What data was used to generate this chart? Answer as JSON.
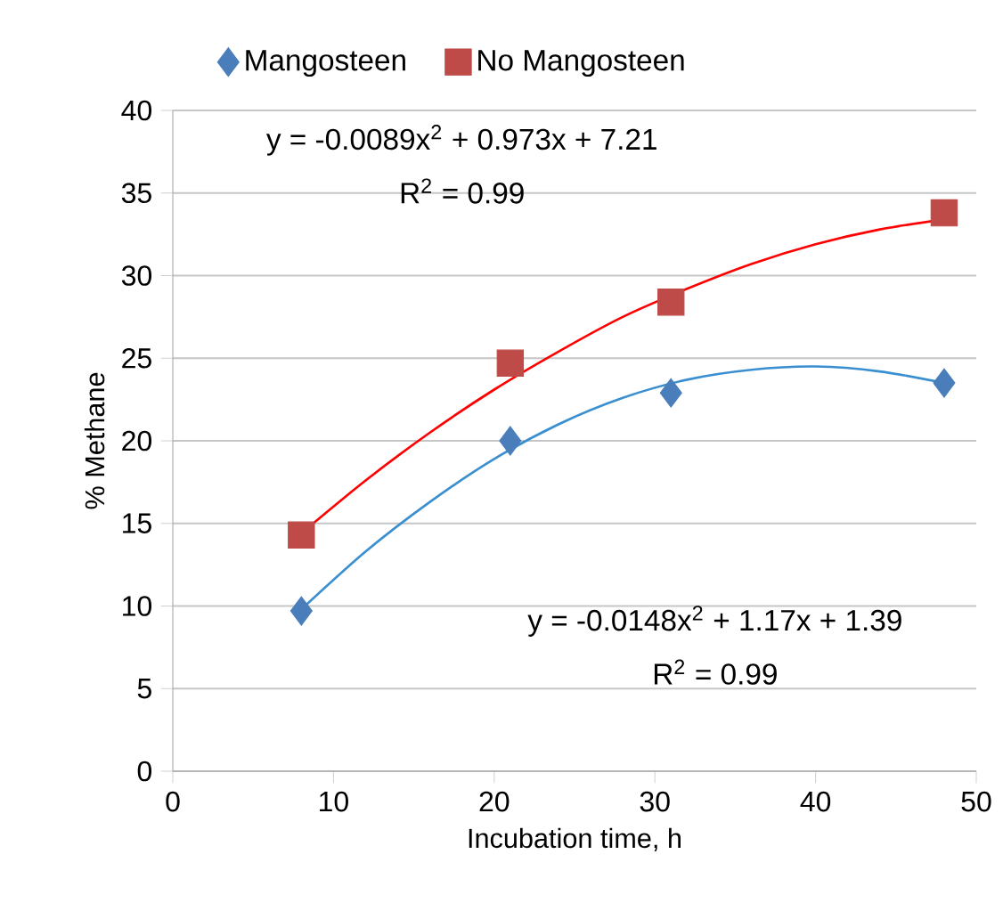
{
  "chart_data": {
    "type": "scatter",
    "xlabel": "Incubation time, h",
    "ylabel": "% Methane",
    "xlim": [
      0,
      50
    ],
    "xticks": [
      0,
      10,
      20,
      30,
      40,
      50
    ],
    "ylim": [
      0,
      40
    ],
    "yticks": [
      0,
      5,
      10,
      15,
      20,
      25,
      30,
      35,
      40
    ],
    "grid": "y",
    "legend": "top",
    "series": [
      {
        "name": "Mangosteen",
        "color": "#4a7ebb",
        "marker": "diamond",
        "x": [
          8,
          21,
          31,
          48
        ],
        "values": [
          9.7,
          20.0,
          22.9,
          23.5
        ]
      },
      {
        "name": "No Mangosteen",
        "color": "#be4b48",
        "marker": "square",
        "x": [
          8,
          21,
          31,
          48
        ],
        "values": [
          14.3,
          24.7,
          28.4,
          33.8
        ]
      },
      {
        "type": "line",
        "color": "#ff0000",
        "marker": "none",
        "line_style": "solid",
        "x": [
          8,
          12,
          16,
          20,
          24,
          28,
          32,
          36,
          40,
          44,
          48
        ],
        "values": [
          14.4,
          17.6,
          20.5,
          23.1,
          25.4,
          27.5,
          29.2,
          30.7,
          31.9,
          32.8,
          33.4
        ]
      },
      {
        "type": "line",
        "color": "#3a8fd0",
        "marker": "none",
        "line_style": "solid",
        "x": [
          8,
          12,
          16,
          20,
          24,
          28,
          32,
          36,
          40,
          44,
          48
        ],
        "values": [
          9.8,
          13.3,
          16.3,
          18.9,
          21.0,
          22.6,
          23.7,
          24.3,
          24.5,
          24.2,
          23.5
        ]
      }
    ],
    "annotations": [
      "y = -0.0089x$^{2}$ + 0.973x + 7.21",
      "R$^{2}$ = 0.99",
      "y = -0.0148x$^{2}$ + 1.17x + 1.39",
      "R$^{2}$ = 0.99"
    ]
  }
}
